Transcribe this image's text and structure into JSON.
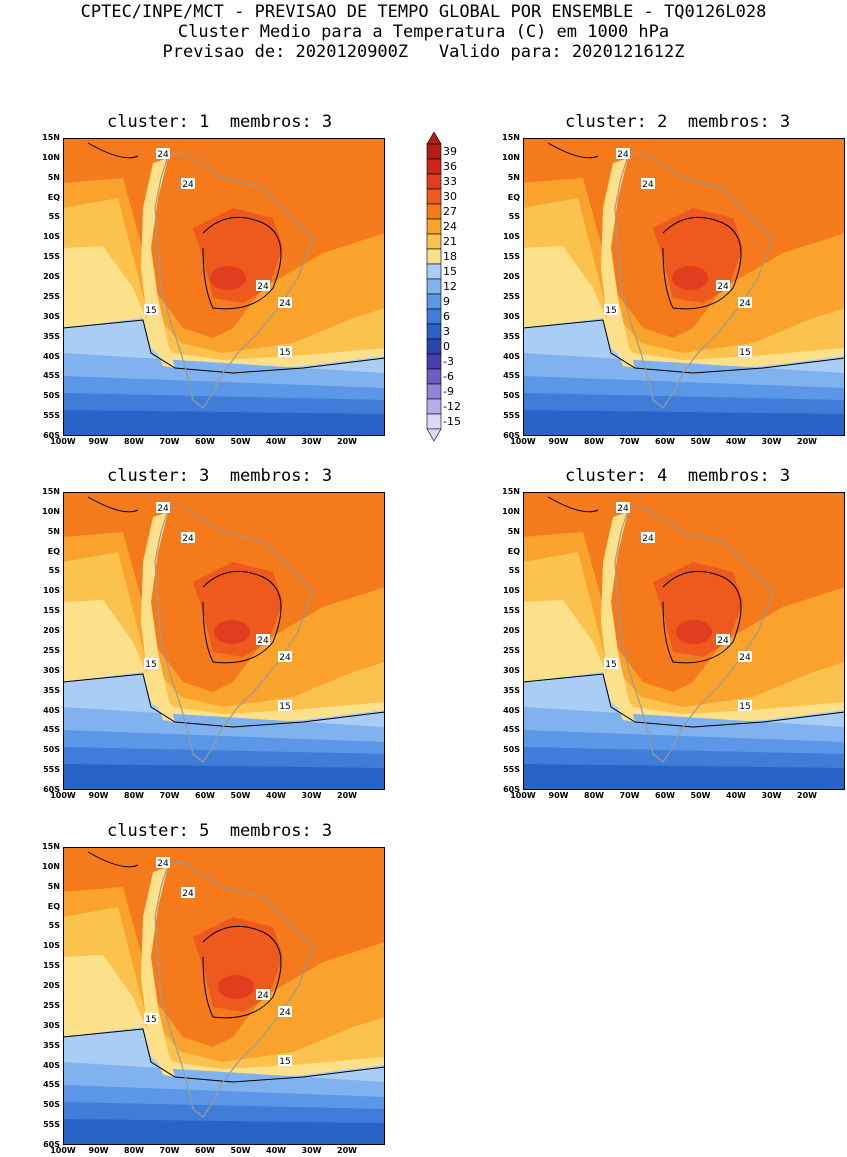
{
  "header": {
    "line1": "CPTEC/INPE/MCT - PREVISAO DE TEMPO GLOBAL POR ENSEMBLE - TQ0126L028",
    "line2": "Cluster Medio para a Temperatura (C) em 1000 hPa",
    "line3": "Previsao de: 2020120900Z   Valido para: 2020121612Z"
  },
  "panels": [
    {
      "title": "cluster: 1  membros: 3"
    },
    {
      "title": "cluster: 2  membros: 3"
    },
    {
      "title": "cluster: 3  membros: 3"
    },
    {
      "title": "cluster: 4  membros: 3"
    },
    {
      "title": "cluster: 5  membros: 3"
    }
  ],
  "axes": {
    "lat_labels": [
      "15N",
      "10N",
      "5N",
      "EQ",
      "5S",
      "10S",
      "15S",
      "20S",
      "25S",
      "30S",
      "35S",
      "40S",
      "45S",
      "50S",
      "55S",
      "60S"
    ],
    "lon_labels": [
      "100W",
      "90W",
      "80W",
      "70W",
      "60W",
      "50W",
      "40W",
      "30W",
      "20W"
    ]
  },
  "colorbar": {
    "labels": [
      "39",
      "36",
      "33",
      "30",
      "27",
      "24",
      "21",
      "18",
      "15",
      "12",
      "9",
      "6",
      "3",
      "0",
      "-3",
      "-6",
      "-9",
      "-12",
      "-15"
    ],
    "colors": [
      "#b21e12",
      "#cd2318",
      "#e03e1e",
      "#ee5a1d",
      "#f57a1c",
      "#f9a32c",
      "#fcc24e",
      "#fde08a",
      "#a9cdf4",
      "#7fb2ee",
      "#5b97e6",
      "#3f7dd8",
      "#2a63c7",
      "#2a45a8",
      "#4a3db0",
      "#6b5ec6",
      "#8e85d8",
      "#b4aee8",
      "#dcd8f5"
    ]
  },
  "contours": {
    "label_24": "24",
    "label_15": "15"
  }
}
